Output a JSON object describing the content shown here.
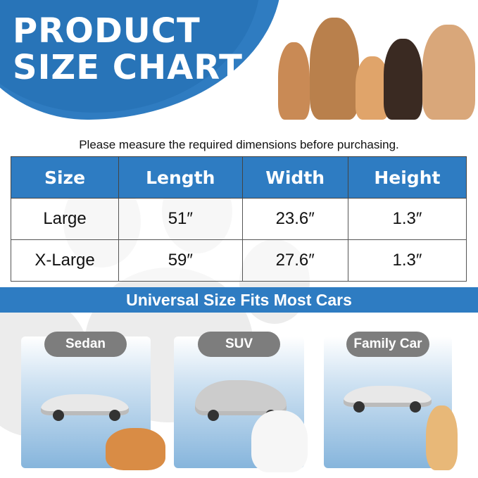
{
  "header": {
    "title_line1": "PRODUCT",
    "title_line2": "SIZE CHART"
  },
  "note": "Please measure the required dimensions before purchasing.",
  "table": {
    "headers": [
      "Size",
      "Length",
      "Width",
      "Height"
    ],
    "rows": [
      [
        "Large",
        "51″",
        "23.6″",
        "1.3″"
      ],
      [
        "X-Large",
        "59″",
        "27.6″",
        "1.3″"
      ]
    ]
  },
  "banner": "Universal Size Fits Most Cars",
  "cars": [
    {
      "label": "Sedan"
    },
    {
      "label": "SUV"
    },
    {
      "label": "Family Car"
    }
  ],
  "colors": {
    "brand_blue": "#2e7cc2",
    "pill_gray": "#7d7d7d"
  }
}
